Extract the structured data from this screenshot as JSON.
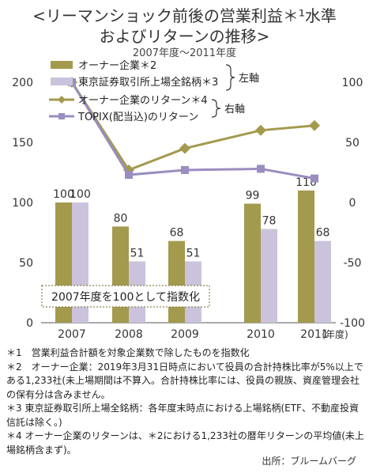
{
  "title_line1": "<リーマンショック前後の営業利益＊¹水準",
  "title_line2": "およびリターンの推移>",
  "subtitle": "2007年度〜2011年度",
  "notes": [
    "＊1　営業利益合計額を対象企業数で除したものを指数化",
    "＊2　オーナー企業：2019年3月31日時点において役員の合計持株比率が5%以上である1,233社(未上場期間は不算入。合計持株比率には、役員の親族、資産管理会社の保有分は含みません。",
    "＊3 東京証券取引所上場全銘柄：各年度末時点における上場銘柄(ETF、不動産投資信託は除く。)",
    "＊4 オーナー企業のリターンは、＊2における1,233社の暦年リターンの平均値(未上場銘柄含まず)。"
  ],
  "source": "出所：ブルームバーグ",
  "annotation_box": "2007年度を100として指数化",
  "colors": {
    "owner_bar": "#a39a4e",
    "tse_bar": "#cbc3dc",
    "owner_line": "#a39a4e",
    "topix_line": "#9a8dbf"
  },
  "chart_data": {
    "type": "bar",
    "categories": [
      "2007",
      "2008",
      "2009",
      "2010",
      "2011"
    ],
    "x_unit": "(年度)",
    "series": [
      {
        "name": "オーナー企業＊2",
        "kind": "bar",
        "axis": "left",
        "values": [
          100,
          80,
          68,
          99,
          110
        ]
      },
      {
        "name": "東京証券取引所上場全銘柄＊3",
        "kind": "bar",
        "axis": "left",
        "values": [
          100,
          51,
          51,
          78,
          68
        ]
      },
      {
        "name": "オーナー企業のリターン＊4",
        "kind": "line",
        "axis": "right",
        "values": [
          100,
          27,
          45,
          60,
          64
        ]
      },
      {
        "name": "TOPIX(配当込)のリターン",
        "kind": "line",
        "axis": "right",
        "values": [
          100,
          23,
          27,
          28,
          20
        ]
      }
    ],
    "left_axis": {
      "ylim": [
        0,
        200
      ],
      "ticks": [
        0,
        50,
        100,
        150,
        200
      ]
    },
    "right_axis": {
      "ylim": [
        -100,
        100
      ],
      "ticks": [
        -100,
        -50,
        0,
        50,
        100
      ]
    },
    "legend_groups": [
      {
        "label": "左軸"
      },
      {
        "label": "右軸"
      }
    ],
    "legend_position": "top-left",
    "grid": false
  }
}
